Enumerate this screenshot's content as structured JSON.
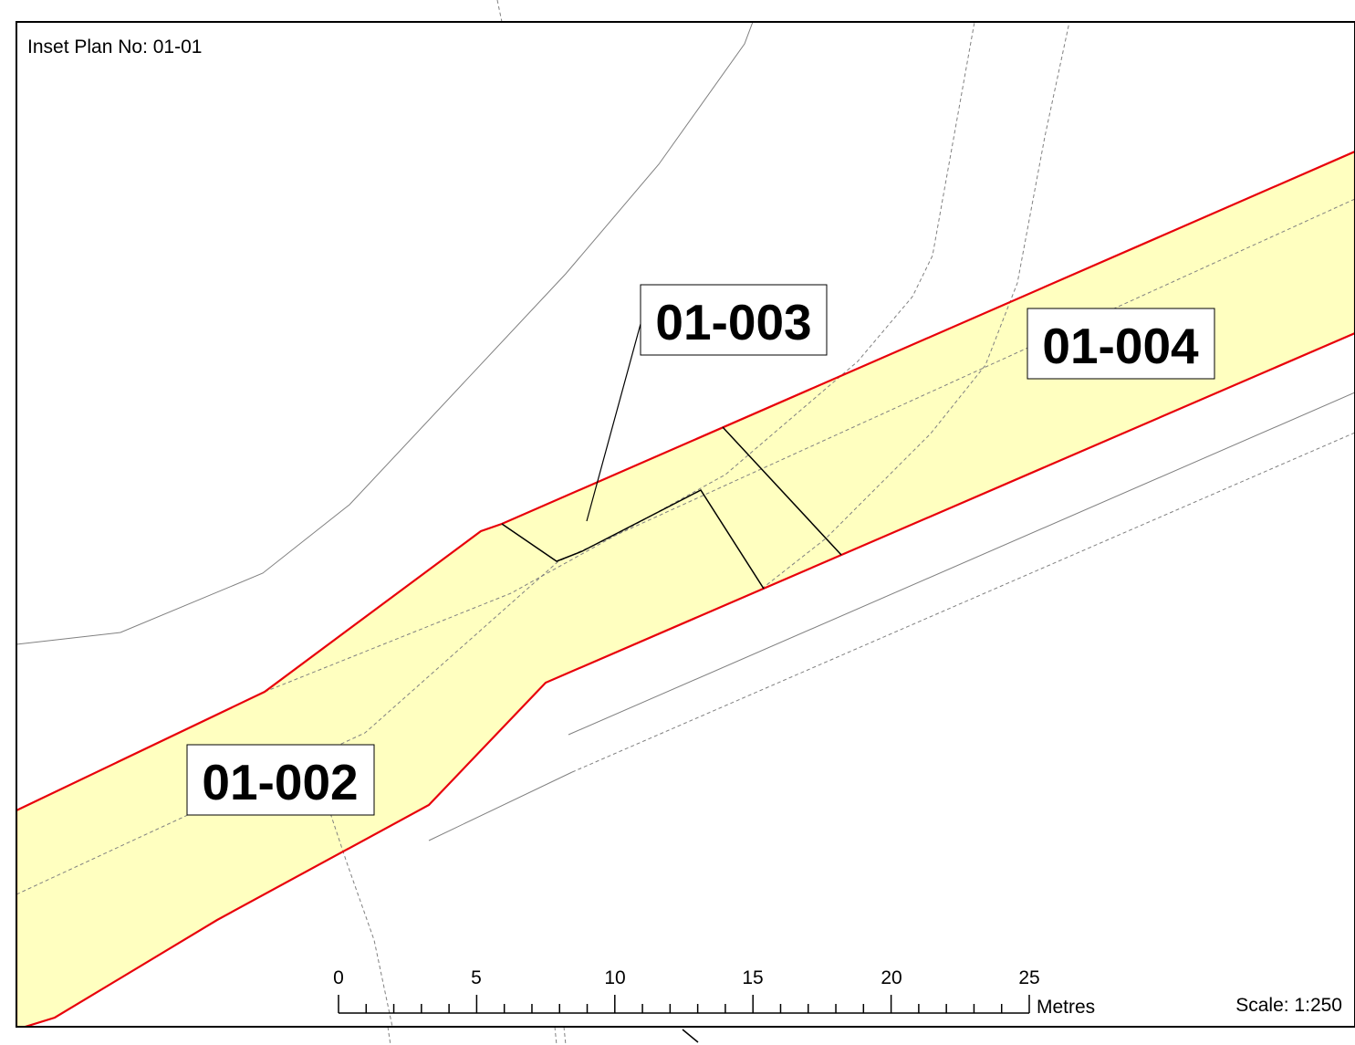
{
  "inset": {
    "title": "Inset Plan No: 01-01",
    "scale": "Scale: 1:250"
  },
  "parcels": {
    "p002": "01-002",
    "p003": "01-003",
    "p004": "01-004"
  },
  "scale_bar": {
    "ticks": [
      "0",
      "5",
      "10",
      "15",
      "20",
      "25"
    ],
    "unit": "Metres"
  },
  "colors": {
    "parcel_fill": "#ffffc0",
    "parcel_outline": "#e8000b",
    "feature_line": "#808080",
    "divider_line": "#000000"
  }
}
